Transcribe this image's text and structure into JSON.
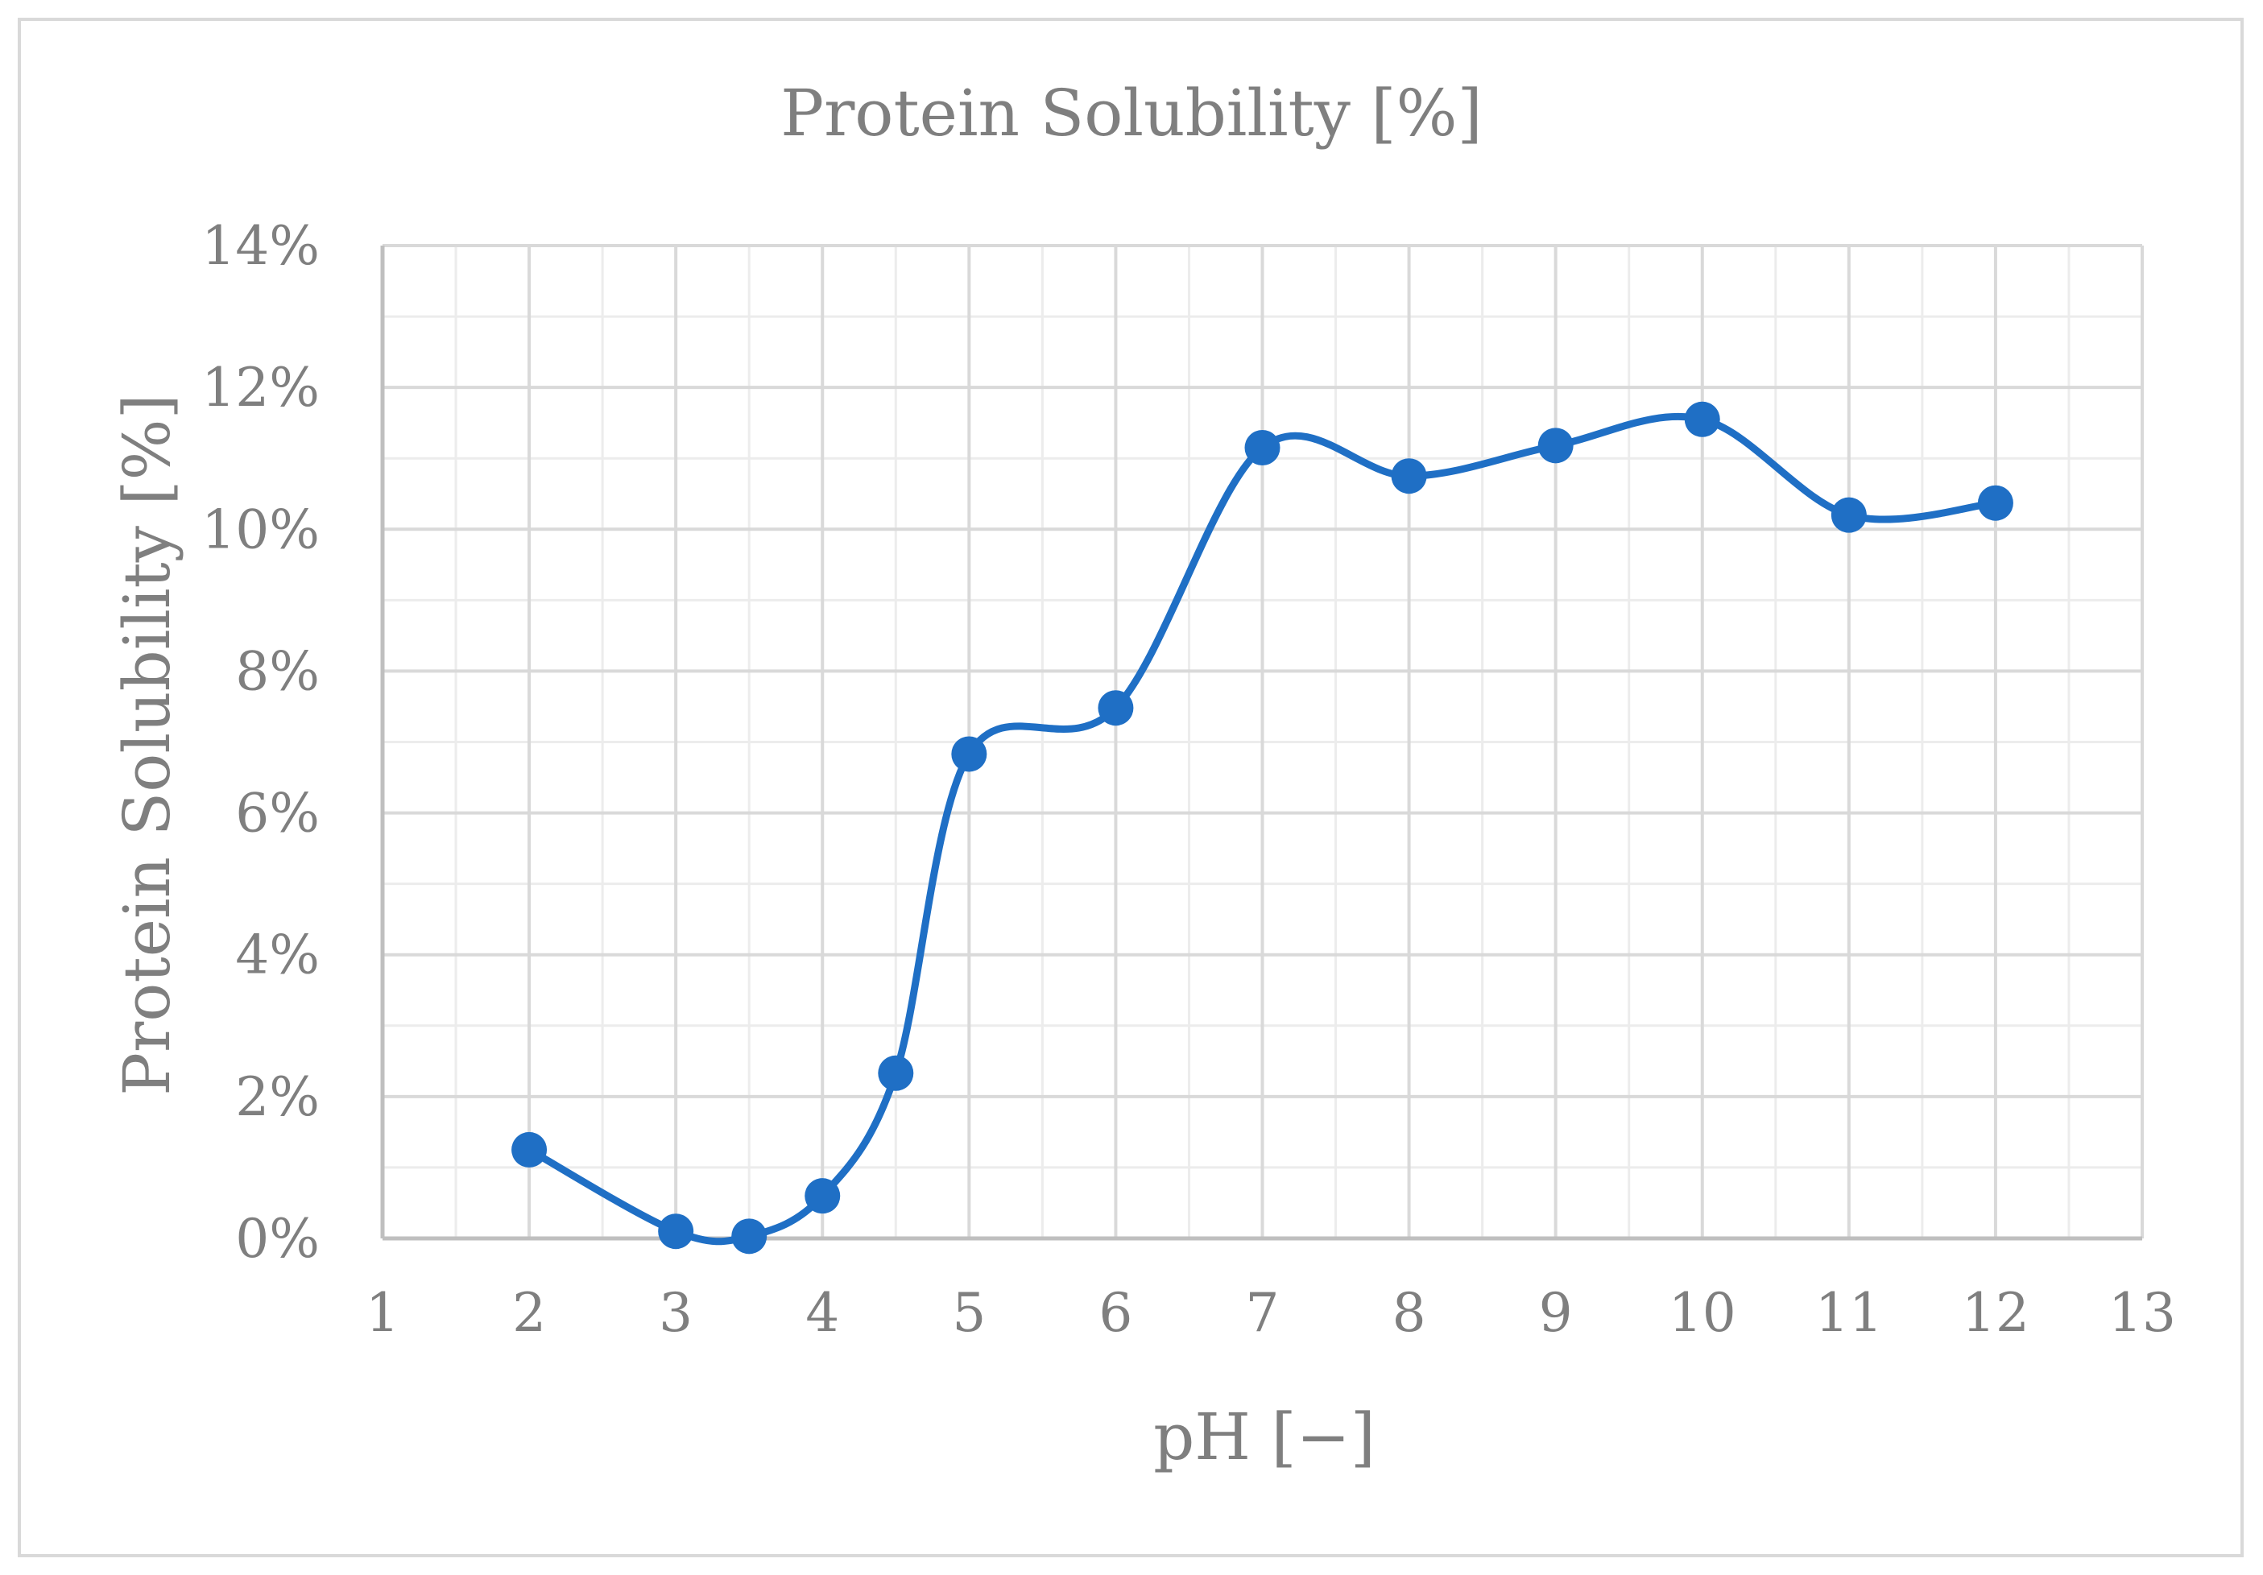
{
  "chart_data": {
    "type": "line",
    "title": "Protein Solubility [%]",
    "xlabel": "pH [−]",
    "ylabel": "Protein Solubility [%]",
    "xlim": [
      1,
      13
    ],
    "ylim": [
      0,
      14
    ],
    "x_ticks": [
      "1",
      "2",
      "3",
      "4",
      "5",
      "6",
      "7",
      "8",
      "9",
      "10",
      "11",
      "12",
      "13"
    ],
    "y_ticks": [
      "0%",
      "2%",
      "4%",
      "6%",
      "8%",
      "10%",
      "12%",
      "14%"
    ],
    "grid": true,
    "smooth": true,
    "series": [
      {
        "x": [
          2,
          3,
          3.5,
          4,
          4.5,
          5,
          6,
          7,
          8,
          9,
          10,
          11,
          12
        ],
        "y": [
          1.25,
          0.1,
          0.03,
          0.6,
          2.33,
          6.83,
          7.48,
          11.15,
          10.75,
          11.18,
          11.55,
          10.2,
          10.37
        ]
      }
    ],
    "colors": {
      "series": "#1f6fc5",
      "grid": "#d9d9d9",
      "minor_grid": "#ececec",
      "text": "#7f7f7f"
    }
  }
}
